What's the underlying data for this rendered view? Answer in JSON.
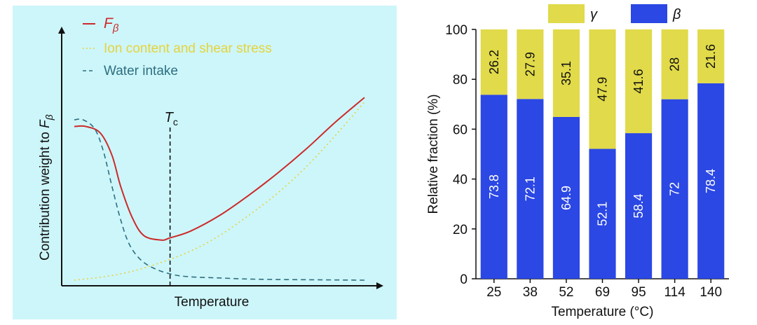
{
  "chart_data": [
    {
      "type": "line",
      "xlabel": "Temperature",
      "ylabel_prefix": "Contribution weight to ",
      "ylabel_symbol": "F",
      "ylabel_subscript": "β",
      "schematic": true,
      "background_color": "#cdf6fa",
      "marker": {
        "label_symbol": "T",
        "label_subscript": "c",
        "x": 0.33
      },
      "series": [
        {
          "name_symbol": "F",
          "name_subscript": "β",
          "style": "solid",
          "color": "#cc2a2a",
          "x": [
            0.0,
            0.04,
            0.09,
            0.13,
            0.16,
            0.2,
            0.24,
            0.3,
            0.33,
            0.4,
            0.5,
            0.6,
            0.7,
            0.8,
            0.9,
            1.0
          ],
          "y": [
            0.69,
            0.69,
            0.66,
            0.56,
            0.42,
            0.28,
            0.2,
            0.18,
            0.19,
            0.22,
            0.29,
            0.38,
            0.48,
            0.59,
            0.71,
            0.82
          ]
        },
        {
          "name": "Ion content and shear stress",
          "style": "dotted",
          "color": "#e6d33a",
          "x": [
            0.0,
            0.1,
            0.2,
            0.3,
            0.4,
            0.5,
            0.6,
            0.7,
            0.8,
            0.9,
            1.0
          ],
          "y": [
            0.0,
            0.015,
            0.04,
            0.08,
            0.13,
            0.2,
            0.29,
            0.39,
            0.51,
            0.65,
            0.8
          ]
        },
        {
          "name": "Water intake",
          "style": "dashed",
          "color": "#2e6f80",
          "x": [
            0.0,
            0.03,
            0.07,
            0.1,
            0.13,
            0.16,
            0.19,
            0.23,
            0.28,
            0.34,
            0.4,
            0.5,
            0.6,
            0.7,
            0.8,
            0.9,
            1.0
          ],
          "y": [
            0.72,
            0.72,
            0.68,
            0.58,
            0.42,
            0.27,
            0.16,
            0.09,
            0.05,
            0.025,
            0.015,
            0.01,
            0.005,
            0.003,
            0.002,
            0.001,
            0.0
          ]
        }
      ]
    },
    {
      "type": "bar",
      "stacked": true,
      "xlabel": "Temperature (°C)",
      "ylabel": "Relative fraction (%)",
      "ylim": [
        0,
        100
      ],
      "yticks": [
        0,
        20,
        40,
        60,
        80,
        100
      ],
      "legend_position": "top",
      "categories": [
        "25",
        "38",
        "52",
        "69",
        "95",
        "114",
        "140"
      ],
      "series": [
        {
          "name": "β",
          "color": "#2b47e4",
          "label_color": "#ffffff",
          "values": [
            73.8,
            72.1,
            64.9,
            52.1,
            58.4,
            72,
            78.4
          ],
          "labels": [
            "73.8",
            "72.1",
            "64.9",
            "52.1",
            "58.4",
            "72",
            "78.4"
          ]
        },
        {
          "name": "γ",
          "color": "#e1da4a",
          "label_color": "#111111",
          "values": [
            26.2,
            27.9,
            35.1,
            47.9,
            41.6,
            28,
            21.6
          ],
          "labels": [
            "26.2",
            "27.9",
            "35.1",
            "47.9",
            "41.6",
            "28",
            "21.6"
          ]
        }
      ]
    }
  ]
}
